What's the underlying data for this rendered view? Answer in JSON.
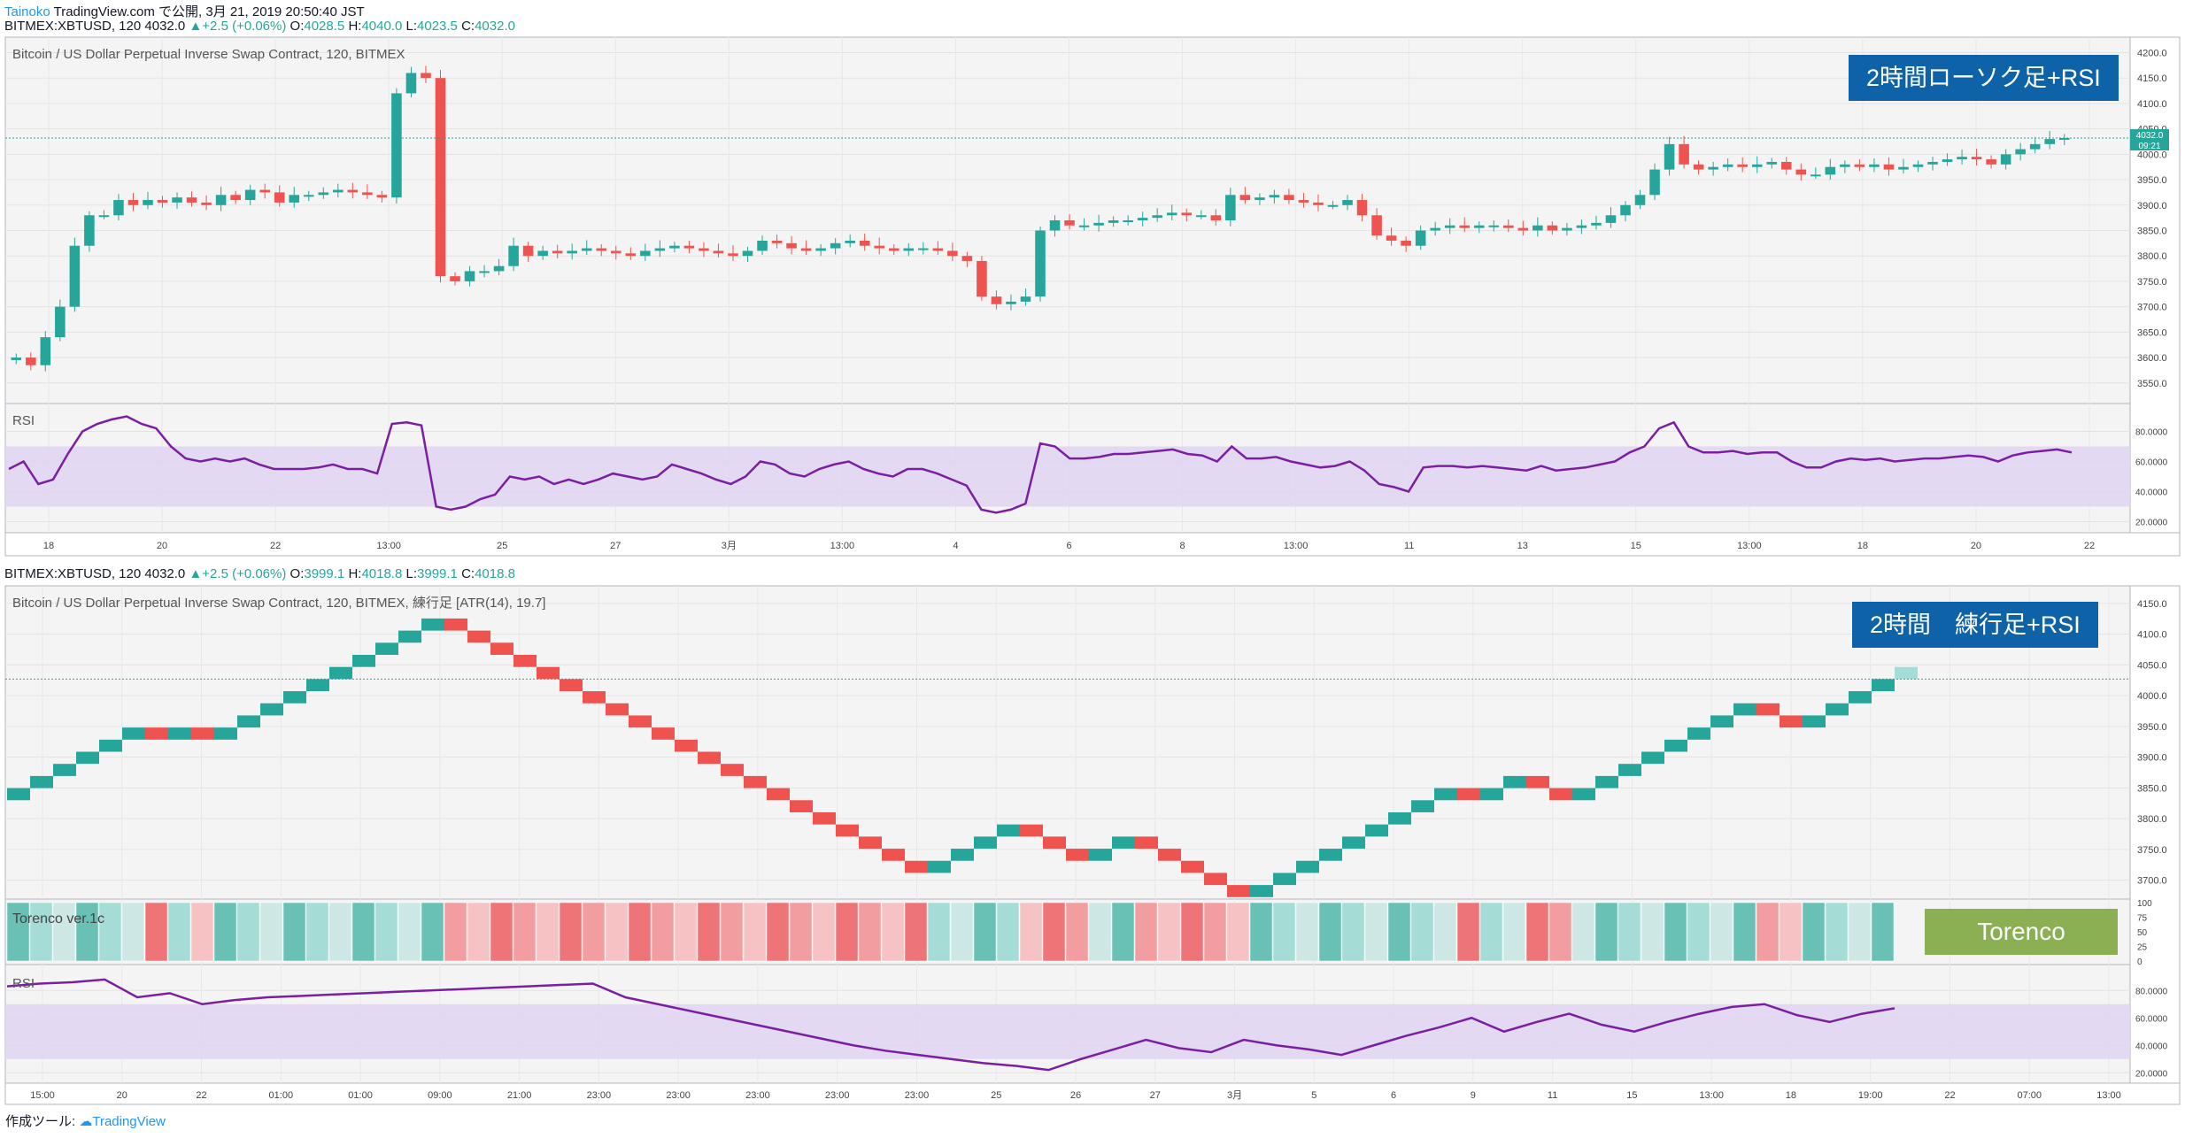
{
  "header": {
    "author": "Tainoko",
    "published": "TradingView.com で公開, 3月 21, 2019 20:50:40 JST",
    "symbol_line": "BITMEX:XBTUSD, 120 4032.0",
    "change": "+2.5 (+0.06%)",
    "o_label": "O:",
    "o_value": "4028.5",
    "h_label": "H:",
    "h_value": "4040.0",
    "l_label": "L:",
    "l_value": "4023.5",
    "c_label": "C:",
    "c_value": "4032.0"
  },
  "header2": {
    "symbol_line": "BITMEX:XBTUSD, 120 4032.0",
    "change": "+2.5 (+0.06%)",
    "o_label": "O:",
    "o_value": "3999.1",
    "h_label": "H:",
    "h_value": "4018.8",
    "l_label": "L:",
    "l_value": "3999.1",
    "c_label": "C:",
    "c_value": "4018.8"
  },
  "colors": {
    "up": "#26a69a",
    "down": "#ef5350",
    "rsi": "#7b1fa2",
    "badge": "#0e62a8",
    "torenco": "#8bb054"
  },
  "footer": {
    "label": "作成ツール:",
    "brand": "TradingView"
  },
  "chart_data": [
    {
      "type": "candlestick",
      "title": "Bitcoin / US Dollar Perpetual Inverse Swap Contract, 120, BITMEX",
      "badge": "2時間ローソク足+RSI",
      "price_tag": "4032.0",
      "time_tag": "09:21",
      "ylim": [
        3520,
        4220
      ],
      "yticks": [
        "4200.0",
        "4150.0",
        "4100.0",
        "4050.0",
        "4000.0",
        "3950.0",
        "3900.0",
        "3850.0",
        "3800.0",
        "3750.0",
        "3700.0",
        "3650.0",
        "3600.0",
        "3550.0"
      ],
      "xticks": [
        "18",
        "20",
        "22",
        "13:00",
        "25",
        "27",
        "3月",
        "13:00",
        "4",
        "6",
        "8",
        "13:00",
        "11",
        "13",
        "15",
        "13:00",
        "18",
        "20",
        "22"
      ],
      "close": [
        3600,
        3585,
        3640,
        3700,
        3820,
        3880,
        3880,
        3910,
        3900,
        3910,
        3905,
        3915,
        3905,
        3900,
        3920,
        3910,
        3930,
        3925,
        3905,
        3920,
        3920,
        3925,
        3930,
        3925,
        3920,
        3915,
        4120,
        4160,
        4150,
        3760,
        3750,
        3770,
        3770,
        3780,
        3820,
        3800,
        3810,
        3805,
        3810,
        3815,
        3810,
        3805,
        3800,
        3810,
        3815,
        3820,
        3815,
        3810,
        3805,
        3800,
        3810,
        3830,
        3825,
        3815,
        3810,
        3815,
        3825,
        3830,
        3820,
        3815,
        3810,
        3815,
        3815,
        3810,
        3800,
        3790,
        3720,
        3705,
        3710,
        3720,
        3850,
        3870,
        3860,
        3860,
        3865,
        3870,
        3870,
        3875,
        3880,
        3885,
        3880,
        3880,
        3870,
        3920,
        3910,
        3915,
        3920,
        3910,
        3905,
        3900,
        3900,
        3910,
        3880,
        3840,
        3830,
        3820,
        3850,
        3855,
        3860,
        3855,
        3860,
        3860,
        3855,
        3850,
        3860,
        3850,
        3855,
        3860,
        3865,
        3880,
        3900,
        3920,
        3970,
        4020,
        3980,
        3970,
        3975,
        3980,
        3975,
        3980,
        3985,
        3970,
        3960,
        3960,
        3975,
        3980,
        3975,
        3980,
        3970,
        3975,
        3980,
        3985,
        3990,
        3995,
        3990,
        3980,
        4000,
        4010,
        4020,
        4030,
        4032
      ],
      "series": [
        {
          "name": "RSI",
          "ylim": [
            15,
            95
          ],
          "yticks": [
            "80.0000",
            "60.0000",
            "40.0000",
            "20.0000"
          ],
          "band": [
            30,
            70
          ],
          "values": [
            55,
            60,
            45,
            48,
            65,
            80,
            85,
            88,
            90,
            85,
            82,
            70,
            62,
            60,
            62,
            60,
            62,
            58,
            55,
            55,
            55,
            56,
            58,
            55,
            55,
            52,
            85,
            86,
            84,
            30,
            28,
            30,
            35,
            38,
            50,
            48,
            50,
            45,
            48,
            45,
            48,
            52,
            50,
            48,
            50,
            58,
            55,
            52,
            48,
            45,
            50,
            60,
            58,
            52,
            50,
            55,
            58,
            60,
            55,
            52,
            50,
            55,
            55,
            52,
            48,
            44,
            28,
            26,
            28,
            32,
            72,
            70,
            62,
            62,
            63,
            65,
            65,
            66,
            67,
            68,
            65,
            64,
            60,
            70,
            62,
            62,
            63,
            60,
            58,
            56,
            57,
            60,
            54,
            45,
            43,
            40,
            56,
            57,
            57,
            56,
            57,
            56,
            55,
            54,
            57,
            54,
            55,
            56,
            58,
            60,
            66,
            70,
            82,
            86,
            70,
            66,
            66,
            67,
            65,
            66,
            66,
            60,
            56,
            56,
            60,
            62,
            61,
            62,
            60,
            61,
            62,
            62,
            63,
            64,
            63,
            60,
            64,
            66,
            67,
            68,
            66
          ]
        }
      ]
    },
    {
      "type": "renko",
      "title": "Bitcoin / US Dollar Perpetual Inverse Swap Contract, 120, BITMEX, 練行足 [ATR(14), 19.7]",
      "badge": "2時間　練行足+RSI",
      "ylim": [
        3675,
        4170
      ],
      "yticks": [
        "4150.0",
        "4100.0",
        "4050.0",
        "4000.0",
        "3950.0",
        "3900.0",
        "3850.0",
        "3800.0",
        "3750.0",
        "3700.0"
      ],
      "xticks": [
        "15:00",
        "20",
        "22",
        "01:00",
        "01:00",
        "09:00",
        "21:00",
        "23:00",
        "23:00",
        "23:00",
        "23:00",
        "23:00",
        "25",
        "26",
        "27",
        "3月",
        "5",
        "6",
        "9",
        "11",
        "15",
        "13:00",
        "18",
        "19:00",
        "22",
        "07:00",
        "13:00"
      ],
      "brick_size": 19.7,
      "bricks": [
        1,
        1,
        1,
        1,
        1,
        1,
        -1,
        1,
        -1,
        1,
        1,
        1,
        1,
        1,
        1,
        1,
        1,
        1,
        1,
        -1,
        -1,
        -1,
        -1,
        -1,
        -1,
        -1,
        -1,
        -1,
        -1,
        -1,
        -1,
        -1,
        -1,
        -1,
        -1,
        -1,
        -1,
        -1,
        -1,
        -1,
        1,
        1,
        1,
        1,
        -1,
        -1,
        -1,
        1,
        1,
        -1,
        -1,
        -1,
        -1,
        -1,
        1,
        1,
        1,
        1,
        1,
        1,
        1,
        1,
        1,
        -1,
        1,
        1,
        -1,
        -1,
        1,
        1,
        1,
        1,
        1,
        1,
        1,
        1,
        -1,
        -1,
        1,
        1,
        1,
        1
      ],
      "series": [
        {
          "name": "Torenco ver.1c",
          "badge": "Torenco",
          "ylim": [
            0,
            100
          ],
          "yticks": [
            "100",
            "75",
            "50",
            "25",
            "0"
          ]
        },
        {
          "name": "RSI",
          "ylim": [
            15,
            95
          ],
          "yticks": [
            "80.0000",
            "60.0000",
            "40.0000",
            "20.0000"
          ],
          "band": [
            30,
            70
          ],
          "values": [
            83,
            85,
            86,
            88,
            75,
            78,
            70,
            73,
            75,
            76,
            77,
            78,
            79,
            80,
            81,
            82,
            83,
            84,
            85,
            75,
            70,
            65,
            60,
            55,
            50,
            45,
            40,
            36,
            33,
            30,
            27,
            25,
            22,
            30,
            37,
            44,
            38,
            35,
            44,
            40,
            37,
            33,
            40,
            47,
            53,
            60,
            50,
            57,
            63,
            55,
            50,
            57,
            63,
            68,
            70,
            62,
            57,
            63,
            67
          ]
        }
      ]
    }
  ]
}
